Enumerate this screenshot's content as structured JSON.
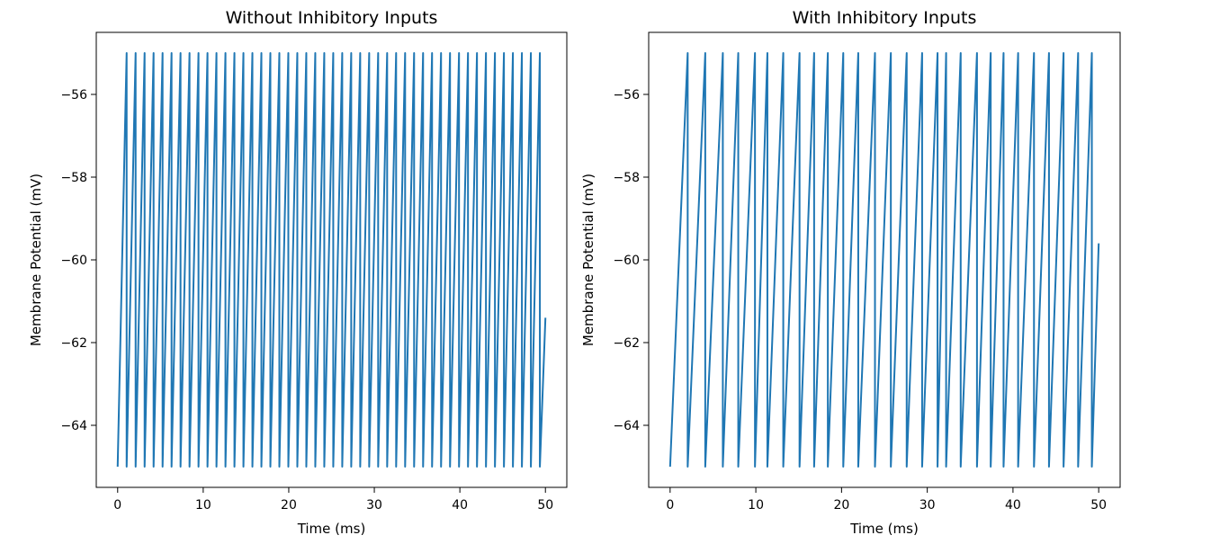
{
  "chart_data": [
    {
      "type": "line",
      "title": "Without Inhibitory Inputs",
      "xlabel": "Time (ms)",
      "ylabel": "Membrane Potential (mV)",
      "xlim": [
        -2.5,
        52.5
      ],
      "ylim": [
        -65.5,
        -54.5
      ],
      "xticks": [
        0,
        10,
        20,
        30,
        40,
        50
      ],
      "yticks": [
        -64,
        -62,
        -60,
        -58,
        -56
      ],
      "xtick_labels": [
        "0",
        "10",
        "20",
        "30",
        "40",
        "50"
      ],
      "ytick_labels": [
        "−64",
        "−62",
        "−60",
        "−58",
        "−56"
      ],
      "grid": false,
      "line_color": "#1f77b4",
      "v_rest": -65,
      "v_threshold": -55,
      "spike_times": [
        1.05,
        2.1,
        3.15,
        4.2,
        5.25,
        6.3,
        7.35,
        8.4,
        9.45,
        10.5,
        11.55,
        12.6,
        13.65,
        14.7,
        15.75,
        16.8,
        17.85,
        18.9,
        19.95,
        21.0,
        22.05,
        23.1,
        24.15,
        25.2,
        26.25,
        27.3,
        28.35,
        29.4,
        30.45,
        31.5,
        32.55,
        33.6,
        34.65,
        35.7,
        36.75,
        37.8,
        38.85,
        39.9,
        40.95,
        42.0,
        43.05,
        44.1,
        45.15,
        46.2,
        47.25,
        48.3,
        49.35
      ],
      "final_point": [
        50,
        -61.4
      ]
    },
    {
      "type": "line",
      "title": "With Inhibitory Inputs",
      "xlabel": "Time (ms)",
      "ylabel": "Membrane Potential (mV)",
      "xlim": [
        -2.5,
        52.5
      ],
      "ylim": [
        -65.5,
        -54.5
      ],
      "xticks": [
        0,
        10,
        20,
        30,
        40,
        50
      ],
      "yticks": [
        -64,
        -62,
        -60,
        -58,
        -56
      ],
      "xtick_labels": [
        "0",
        "10",
        "20",
        "30",
        "40",
        "50"
      ],
      "ytick_labels": [
        "−64",
        "−62",
        "−60",
        "−58",
        "−56"
      ],
      "grid": false,
      "line_color": "#1f77b4",
      "v_rest": -65,
      "v_threshold": -55,
      "spike_times": [
        2.05,
        4.1,
        6.15,
        7.95,
        9.9,
        11.35,
        13.2,
        15.1,
        16.8,
        18.4,
        20.2,
        21.95,
        23.9,
        25.75,
        27.6,
        29.4,
        31.2,
        32.2,
        33.9,
        35.8,
        37.4,
        38.9,
        40.6,
        42.45,
        44.2,
        45.9,
        47.6,
        49.2
      ],
      "final_point": [
        50,
        -59.6
      ]
    }
  ]
}
